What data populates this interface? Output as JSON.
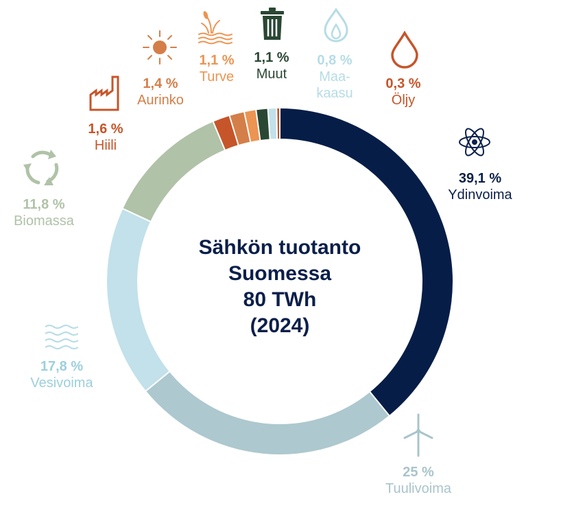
{
  "chart_data": {
    "type": "pie",
    "title_lines": [
      "Sähkön tuotanto",
      "Suomessa",
      "80 TWh",
      "(2024)"
    ],
    "slices": [
      {
        "key": "ydinvoima",
        "label": "Ydinvoima",
        "value": 39.1,
        "pct_text": "39,1 %",
        "color": "#061d47",
        "icon": "atom-icon"
      },
      {
        "key": "tuulivoima",
        "label": "Tuulivoima",
        "value": 25.0,
        "pct_text": "25 %",
        "color": "#adc8cf",
        "icon": "wind-turbine-icon"
      },
      {
        "key": "vesivoima",
        "label": "Vesivoima",
        "value": 17.8,
        "pct_text": "17,8 %",
        "color": "#c2e1ea",
        "icon": "water-waves-icon"
      },
      {
        "key": "biomassa",
        "label": "Biomassa",
        "value": 11.8,
        "pct_text": "11,8 %",
        "color": "#b0c2a7",
        "icon": "recycle-icon"
      },
      {
        "key": "hiili",
        "label": "Hiili",
        "value": 1.6,
        "pct_text": "1,6 %",
        "color": "#c6552a",
        "icon": "factory-icon"
      },
      {
        "key": "aurinko",
        "label": "Aurinko",
        "value": 1.4,
        "pct_text": "1,4 %",
        "color": "#d47f49",
        "icon": "sun-icon"
      },
      {
        "key": "turve",
        "label": "Turve",
        "value": 1.1,
        "pct_text": "1,1 %",
        "color": "#ec9452",
        "icon": "peat-icon"
      },
      {
        "key": "muut",
        "label": "Muut",
        "value": 1.1,
        "pct_text": "1,1 %",
        "color": "#2a4734",
        "icon": "trash-can-icon"
      },
      {
        "key": "maakaasu",
        "label": "Maa-\nkaasu",
        "value": 0.8,
        "pct_text": "0,8 %",
        "color": "#c2e1ea",
        "icon": "gas-flame-icon"
      },
      {
        "key": "oljy",
        "label": "Öljy",
        "value": 0.3,
        "pct_text": "0,3 %",
        "color": "#c6552a",
        "icon": "oil-drop-icon"
      }
    ],
    "legend": "none"
  }
}
